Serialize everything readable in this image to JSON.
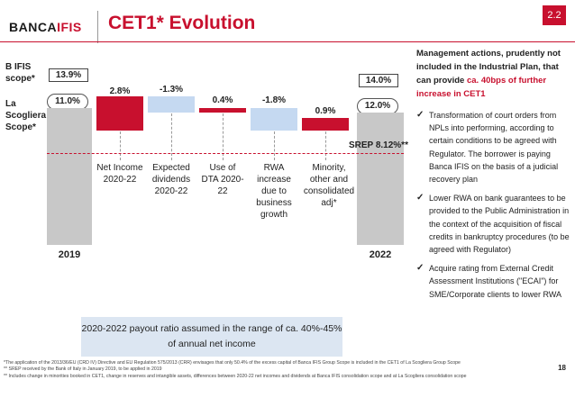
{
  "header": {
    "logo": "BANCA IFIS",
    "logo_word1": "BANCA",
    "logo_word2": "IFIS",
    "title": "CET1* Evolution",
    "section_badge": "2.2"
  },
  "chart": {
    "left_labels": {
      "bifis_scope": "B IFIS scope*",
      "la_scogliera_scope": "La Scogliera Scope*"
    },
    "start": {
      "year": "2019",
      "bifis_value": "13.9%",
      "scogliera_value": "11.0%"
    },
    "end": {
      "year": "2022",
      "bifis_value": "14.0%",
      "scogliera_value": "12.0%"
    },
    "steps": [
      {
        "value": "2.8%",
        "category": "Net Income 2020-22",
        "color": "#c8102e"
      },
      {
        "value": "-1.3%",
        "category": "Expected dividends 2020-22",
        "color": "#c5d9f1"
      },
      {
        "value": "0.4%",
        "category": "Use of DTA 2020-22",
        "color": "#c8102e"
      },
      {
        "value": "-1.8%",
        "category": "RWA increase due to business growth",
        "color": "#c5d9f1"
      },
      {
        "value": "0.9%",
        "category": "Minority, other and consolidated adj*",
        "color": "#c8102e"
      }
    ],
    "srep_label": "SREP 8.12%**"
  },
  "chart_data": {
    "type": "bar",
    "categories": [
      "2019",
      "Net Income 2020-22",
      "Expected dividends 2020-22",
      "Use of DTA 2020-22",
      "RWA increase due to business growth",
      "Minority, other and consolidated adj*",
      "2022"
    ],
    "series": [
      {
        "name": "La Scogliera Scope*",
        "values": [
          11.0,
          2.8,
          -1.3,
          0.4,
          -1.8,
          0.9,
          12.0
        ]
      }
    ],
    "start_bifis": 13.9,
    "end_bifis": 14.0,
    "srep": 8.12
  },
  "payout_box": "2020-2022 payout ratio assumed in the range of ca. 40%-45% of annual net income",
  "right_panel": {
    "heading_part1": "Management actions, prudently not included in the Industrial Plan, that can provide",
    "heading_part2": "ca. 40bps of further increase in CET1",
    "bullets": [
      "Transformation of court orders from NPLs into performing, according to certain conditions to be agreed with Regulator. The borrower is paying Banca IFIS on the basis of a judicial recovery plan",
      "Lower RWA on bank guarantees to be provided to the Public Administration in the context of the acquisition of fiscal credits in bankruptcy procedures (to be agreed with Regulator)",
      "Acquire rating from External Credit Assessment Institutions (\"ECAI\") for SME/Corporate clients to lower RWA"
    ]
  },
  "footnotes": [
    "*The application of the 2013/36/EU (CRD IV) Directive and EU Regulation 575/2013 (CRR) envisages that only 50.4% of the excess capital of Banca IFIS Group Scope is included in the CET1 of La Scogliera Group Scope",
    "** SREP received by the Bank of Italy in January 2019, to be applied in 2019",
    "** Includes change in minorities booked in CET1, change in reserves and intangible assets, differences between 2020-22 net incomes and dividends at Banca IFIS consolidation scope and at La Scogliera consolidation scope"
  ],
  "page_number": "18"
}
